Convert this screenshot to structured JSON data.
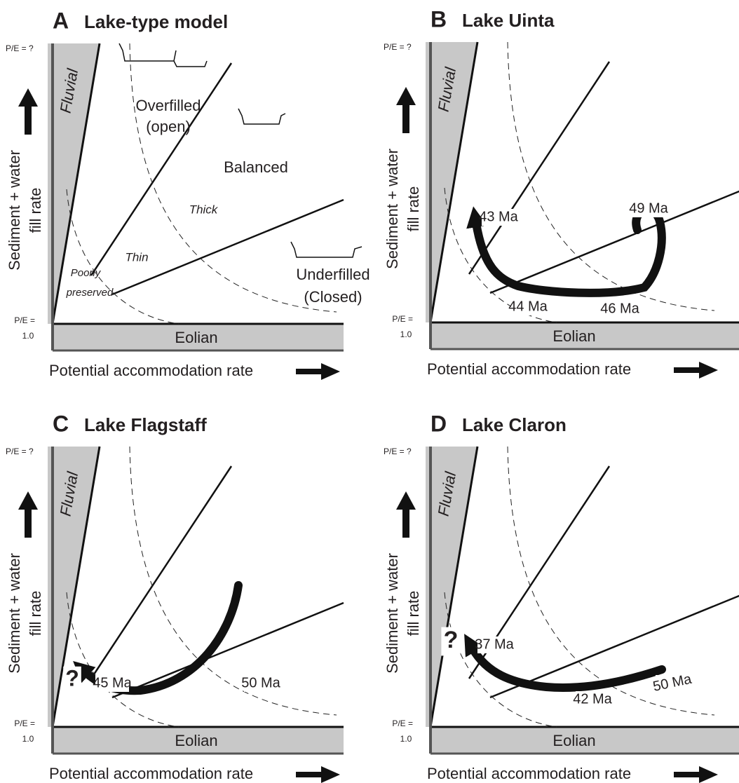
{
  "panels": [
    {
      "letter": "A",
      "title": "Lake-type model",
      "pe_top": "P/E = ?",
      "pe_bottom": [
        "P/E =",
        "1.0"
      ],
      "y_axis_label": [
        "Sediment + water",
        "fill rate"
      ],
      "fluvial": "Fluvial",
      "eolian": "Eolian",
      "x_axis_label": "Potential accommodation rate",
      "labels": [
        "Overfilled",
        "(open)",
        "Balanced",
        "Thick",
        "Thin",
        "Poorly",
        "preserved",
        "Underfilled",
        "(Closed)"
      ]
    },
    {
      "letter": "B",
      "title": "Lake Uinta",
      "pe_top": "P/E = ?",
      "pe_bottom": [
        "P/E =",
        "1.0"
      ],
      "y_axis_label": [
        "Sediment + water",
        "fill rate"
      ],
      "fluvial": "Fluvial",
      "eolian": "Eolian",
      "x_axis_label": "Potential accommodation rate",
      "labels": [
        "43 Ma",
        "44 Ma",
        "46 Ma",
        "49 Ma"
      ]
    },
    {
      "letter": "C",
      "title": "Lake Flagstaff",
      "pe_top": "P/E = ?",
      "pe_bottom": [
        "P/E =",
        "1.0"
      ],
      "y_axis_label": [
        "Sediment + water",
        "fill rate"
      ],
      "fluvial": "Fluvial",
      "eolian": "Eolian",
      "x_axis_label": "Potential accommodation rate",
      "labels": [
        "?",
        "45 Ma",
        "50 Ma"
      ]
    },
    {
      "letter": "D",
      "title": "Lake Claron",
      "pe_top": "P/E = ?",
      "pe_bottom": [
        "P/E =",
        "1.0"
      ],
      "y_axis_label": [
        "Sediment + water",
        "fill rate"
      ],
      "fluvial": "Fluvial",
      "eolian": "Eolian",
      "x_axis_label": "Potential accommodation rate",
      "labels": [
        "?",
        "37 Ma",
        "42 Ma",
        "50 Ma"
      ]
    }
  ]
}
